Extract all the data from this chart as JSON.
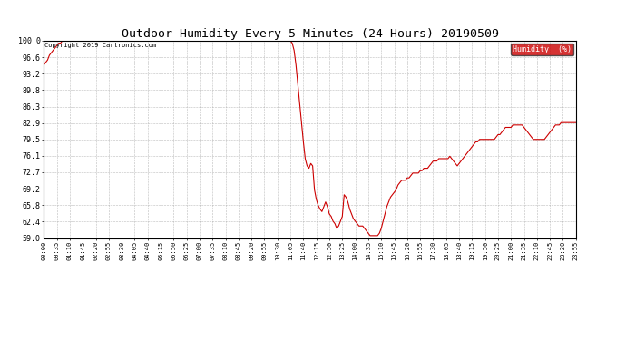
{
  "title": "Outdoor Humidity Every 5 Minutes (24 Hours) 20190509",
  "copyright_text": "Copyright 2019 Cartronics.com",
  "legend_label": "Humidity  (%)",
  "legend_bg": "#cc0000",
  "legend_fg": "#ffffff",
  "line_color": "#cc0000",
  "bg_color": "#ffffff",
  "grid_color": "#aaaaaa",
  "title_fontsize": 9.5,
  "ylim": [
    59.0,
    100.0
  ],
  "yticks": [
    59.0,
    62.4,
    65.8,
    69.2,
    72.7,
    76.1,
    79.5,
    82.9,
    86.3,
    89.8,
    93.2,
    96.6,
    100.0
  ],
  "humidity_values": [
    95.0,
    95.5,
    96.0,
    97.0,
    97.5,
    98.0,
    98.5,
    99.0,
    99.5,
    99.5,
    100.0,
    100.0,
    100.0,
    100.0,
    100.0,
    100.0,
    100.0,
    100.0,
    100.0,
    100.0,
    100.0,
    100.0,
    100.0,
    100.0,
    100.0,
    100.0,
    100.0,
    100.0,
    100.0,
    100.0,
    100.0,
    100.0,
    100.0,
    100.0,
    100.0,
    100.0,
    100.0,
    100.0,
    100.0,
    100.0,
    100.0,
    100.0,
    100.0,
    100.0,
    100.0,
    100.0,
    100.0,
    100.0,
    100.0,
    100.0,
    100.0,
    100.0,
    100.0,
    100.0,
    100.0,
    100.0,
    100.0,
    100.0,
    100.0,
    100.0,
    100.0,
    100.0,
    100.0,
    100.0,
    100.0,
    100.0,
    100.0,
    100.0,
    100.0,
    100.0,
    100.0,
    100.0,
    100.0,
    100.0,
    100.0,
    100.0,
    100.0,
    100.0,
    100.0,
    100.0,
    100.0,
    100.0,
    100.0,
    100.0,
    100.0,
    100.0,
    100.0,
    100.0,
    100.0,
    100.0,
    100.0,
    100.0,
    100.0,
    100.0,
    100.0,
    100.0,
    100.0,
    100.0,
    100.0,
    100.0,
    100.0,
    100.0,
    100.0,
    100.0,
    100.0,
    100.0,
    100.0,
    100.0,
    100.0,
    100.0,
    100.0,
    100.0,
    100.0,
    100.0,
    100.0,
    100.0,
    100.0,
    100.0,
    100.0,
    100.0,
    100.0,
    100.0,
    100.0,
    100.0,
    100.0,
    100.0,
    100.0,
    100.0,
    100.0,
    100.0,
    100.0,
    100.0,
    100.0,
    100.0,
    99.5,
    98.0,
    95.0,
    91.0,
    87.0,
    83.0,
    79.0,
    75.5,
    74.0,
    73.5,
    74.5,
    74.0,
    69.0,
    67.0,
    65.8,
    65.0,
    64.5,
    65.5,
    66.5,
    65.5,
    64.0,
    63.5,
    62.5,
    62.0,
    61.0,
    61.5,
    62.5,
    63.5,
    68.0,
    67.5,
    66.5,
    65.0,
    64.0,
    63.0,
    62.5,
    62.0,
    61.5,
    61.5,
    61.5,
    61.0,
    60.5,
    60.0,
    59.5,
    59.5,
    59.5,
    59.5,
    59.5,
    60.0,
    61.0,
    62.5,
    64.0,
    65.5,
    66.5,
    67.5,
    68.0,
    68.5,
    69.0,
    70.0,
    70.5,
    71.0,
    71.0,
    71.0,
    71.5,
    71.5,
    72.0,
    72.5,
    72.5,
    72.5,
    72.5,
    73.0,
    73.0,
    73.5,
    73.5,
    73.5,
    74.0,
    74.5,
    75.0,
    75.0,
    75.0,
    75.5,
    75.5,
    75.5,
    75.5,
    75.5,
    75.5,
    76.0,
    75.5,
    75.0,
    74.5,
    74.0,
    74.5,
    75.0,
    75.5,
    76.0,
    76.5,
    77.0,
    77.5,
    78.0,
    78.5,
    79.0,
    79.0,
    79.5,
    79.5,
    79.5,
    79.5,
    79.5,
    79.5,
    79.5,
    79.5,
    79.5,
    80.0,
    80.5,
    80.5,
    81.0,
    81.5,
    82.0,
    82.0,
    82.0,
    82.0,
    82.5,
    82.5,
    82.5,
    82.5,
    82.5,
    82.5,
    82.0,
    81.5,
    81.0,
    80.5,
    80.0,
    79.5,
    79.5,
    79.5,
    79.5,
    79.5,
    79.5,
    79.5,
    80.0,
    80.5,
    81.0,
    81.5,
    82.0,
    82.5,
    82.5,
    82.5,
    83.0,
    83.0,
    83.0,
    83.0,
    83.0,
    83.0,
    83.0,
    83.0,
    83.0
  ],
  "xtick_labels": [
    "00:00",
    "00:35",
    "01:10",
    "01:45",
    "02:20",
    "02:55",
    "03:30",
    "04:05",
    "04:40",
    "05:15",
    "05:50",
    "06:25",
    "07:00",
    "07:35",
    "08:10",
    "08:45",
    "09:20",
    "09:55",
    "10:30",
    "11:05",
    "11:40",
    "12:15",
    "12:50",
    "13:25",
    "14:00",
    "14:35",
    "15:10",
    "15:45",
    "16:20",
    "16:55",
    "17:30",
    "18:05",
    "18:40",
    "19:15",
    "19:50",
    "20:25",
    "21:00",
    "21:35",
    "22:10",
    "22:45",
    "23:20",
    "23:55"
  ]
}
